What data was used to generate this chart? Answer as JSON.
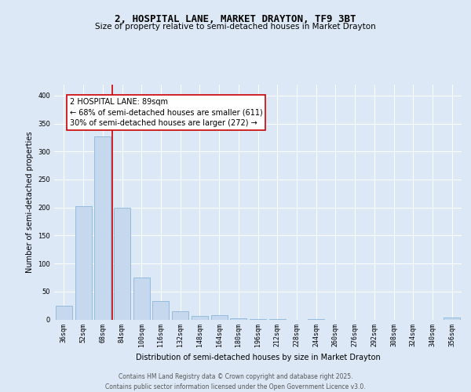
{
  "title": "2, HOSPITAL LANE, MARKET DRAYTON, TF9 3BT",
  "subtitle": "Size of property relative to semi-detached houses in Market Drayton",
  "xlabel": "Distribution of semi-detached houses by size in Market Drayton",
  "ylabel": "Number of semi-detached properties",
  "categories": [
    "36sqm",
    "52sqm",
    "68sqm",
    "84sqm",
    "100sqm",
    "116sqm",
    "132sqm",
    "148sqm",
    "164sqm",
    "180sqm",
    "196sqm",
    "212sqm",
    "228sqm",
    "244sqm",
    "260sqm",
    "276sqm",
    "292sqm",
    "308sqm",
    "324sqm",
    "340sqm",
    "356sqm"
  ],
  "values": [
    25,
    203,
    327,
    200,
    75,
    33,
    15,
    7,
    8,
    2,
    1,
    1,
    0,
    1,
    0,
    0,
    0,
    0,
    0,
    0,
    3
  ],
  "bar_color": "#c5d8ed",
  "bar_edge_color": "#7aaed4",
  "vline_x_index": 2.5,
  "vline_color": "#cc0000",
  "annotation_text": "2 HOSPITAL LANE: 89sqm\n← 68% of semi-detached houses are smaller (611)\n30% of semi-detached houses are larger (272) →",
  "annotation_box_color": "#ffffff",
  "annotation_box_edge_color": "#cc0000",
  "ylim": [
    0,
    420
  ],
  "yticks": [
    0,
    50,
    100,
    150,
    200,
    250,
    300,
    350,
    400
  ],
  "footer_text": "Contains HM Land Registry data © Crown copyright and database right 2025.\nContains public sector information licensed under the Open Government Licence v3.0.",
  "background_color": "#dce8f5",
  "plot_background_color": "#dce8f5",
  "title_fontsize": 9,
  "subtitle_fontsize": 7.5,
  "axis_label_fontsize": 7,
  "tick_fontsize": 6,
  "annotation_fontsize": 7,
  "footer_fontsize": 5.5
}
